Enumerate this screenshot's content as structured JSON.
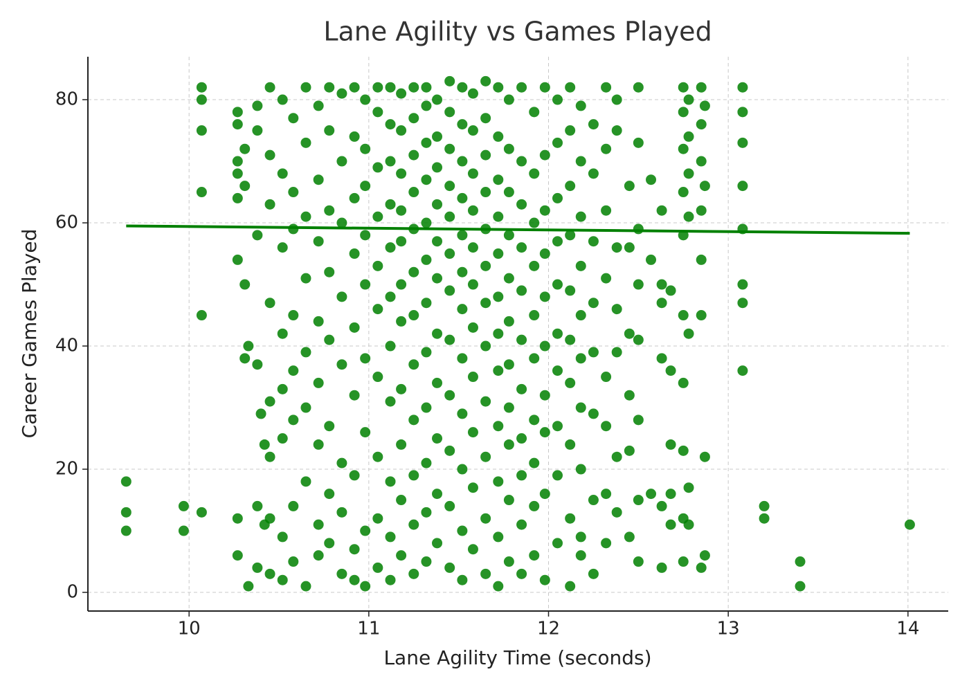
{
  "chart_data": {
    "type": "scatter",
    "title": "Lane Agility vs Games Played",
    "x_label": "Lane Agility Time (seconds)",
    "y_label": "Career Games Played",
    "color": "#008000",
    "grid": true,
    "xlim": [
      9.437,
      14.224
    ],
    "ylim": [
      -3.03,
      86.97
    ],
    "xticks": [
      10,
      11,
      12,
      13,
      14
    ],
    "yticks": [
      0,
      20,
      40,
      60,
      80
    ],
    "trend": {
      "x": [
        9.65,
        14.01
      ],
      "y": [
        59.5,
        58.3
      ]
    },
    "x": [
      9.65,
      9.65,
      9.65,
      9.97,
      9.97,
      10.07,
      10.07,
      10.07,
      10.07,
      10.07,
      10.07,
      10.27,
      10.27,
      10.27,
      10.27,
      10.27,
      10.27,
      10.27,
      10.27,
      10.31,
      10.31,
      10.31,
      10.31,
      10.33,
      10.33,
      10.38,
      10.38,
      10.38,
      10.38,
      10.38,
      10.38,
      10.4,
      10.42,
      10.42,
      10.45,
      10.45,
      10.45,
      10.45,
      10.45,
      10.45,
      10.45,
      10.45,
      10.52,
      10.52,
      10.52,
      10.52,
      10.52,
      10.52,
      10.52,
      10.52,
      10.58,
      10.58,
      10.58,
      10.58,
      10.58,
      10.58,
      10.58,
      10.58,
      10.65,
      10.65,
      10.65,
      10.65,
      10.65,
      10.65,
      10.65,
      10.65,
      10.72,
      10.72,
      10.72,
      10.72,
      10.72,
      10.72,
      10.72,
      10.72,
      10.78,
      10.78,
      10.78,
      10.78,
      10.78,
      10.78,
      10.78,
      10.78,
      10.85,
      10.85,
      10.85,
      10.85,
      10.85,
      10.85,
      10.85,
      10.85,
      10.92,
      10.92,
      10.92,
      10.92,
      10.92,
      10.92,
      10.92,
      10.92,
      10.92,
      10.98,
      10.98,
      10.98,
      10.98,
      10.98,
      10.98,
      10.98,
      10.98,
      10.98,
      11.05,
      11.05,
      11.05,
      11.05,
      11.05,
      11.05,
      11.05,
      11.05,
      11.05,
      11.05,
      11.12,
      11.12,
      11.12,
      11.12,
      11.12,
      11.12,
      11.12,
      11.12,
      11.12,
      11.12,
      11.12,
      11.18,
      11.18,
      11.18,
      11.18,
      11.18,
      11.18,
      11.18,
      11.18,
      11.18,
      11.18,
      11.18,
      11.25,
      11.25,
      11.25,
      11.25,
      11.25,
      11.25,
      11.25,
      11.25,
      11.25,
      11.25,
      11.25,
      11.25,
      11.32,
      11.32,
      11.32,
      11.32,
      11.32,
      11.32,
      11.32,
      11.32,
      11.32,
      11.32,
      11.32,
      11.32,
      11.38,
      11.38,
      11.38,
      11.38,
      11.38,
      11.38,
      11.38,
      11.38,
      11.38,
      11.38,
      11.38,
      11.45,
      11.45,
      11.45,
      11.45,
      11.45,
      11.45,
      11.45,
      11.45,
      11.45,
      11.45,
      11.45,
      11.45,
      11.52,
      11.52,
      11.52,
      11.52,
      11.52,
      11.52,
      11.52,
      11.52,
      11.52,
      11.52,
      11.52,
      11.52,
      11.58,
      11.58,
      11.58,
      11.58,
      11.58,
      11.58,
      11.58,
      11.58,
      11.58,
      11.58,
      11.58,
      11.65,
      11.65,
      11.65,
      11.65,
      11.65,
      11.65,
      11.65,
      11.65,
      11.65,
      11.65,
      11.65,
      11.65,
      11.72,
      11.72,
      11.72,
      11.72,
      11.72,
      11.72,
      11.72,
      11.72,
      11.72,
      11.72,
      11.72,
      11.72,
      11.78,
      11.78,
      11.78,
      11.78,
      11.78,
      11.78,
      11.78,
      11.78,
      11.78,
      11.78,
      11.78,
      11.85,
      11.85,
      11.85,
      11.85,
      11.85,
      11.85,
      11.85,
      11.85,
      11.85,
      11.85,
      11.85,
      11.92,
      11.92,
      11.92,
      11.92,
      11.92,
      11.92,
      11.92,
      11.92,
      11.92,
      11.92,
      11.98,
      11.98,
      11.98,
      11.98,
      11.98,
      11.98,
      11.98,
      11.98,
      11.98,
      11.98,
      12.05,
      12.05,
      12.05,
      12.05,
      12.05,
      12.05,
      12.05,
      12.05,
      12.05,
      12.05,
      12.12,
      12.12,
      12.12,
      12.12,
      12.12,
      12.12,
      12.12,
      12.12,
      12.12,
      12.12,
      12.18,
      12.18,
      12.18,
      12.18,
      12.18,
      12.18,
      12.18,
      12.18,
      12.18,
      12.18,
      12.25,
      12.25,
      12.25,
      12.25,
      12.25,
      12.25,
      12.25,
      12.25,
      12.32,
      12.32,
      12.32,
      12.32,
      12.32,
      12.32,
      12.32,
      12.32,
      12.38,
      12.38,
      12.38,
      12.38,
      12.38,
      12.38,
      12.38,
      12.45,
      12.45,
      12.45,
      12.45,
      12.45,
      12.45,
      12.5,
      12.5,
      12.5,
      12.5,
      12.5,
      12.5,
      12.5,
      12.5,
      12.57,
      12.57,
      12.57,
      12.63,
      12.63,
      12.63,
      12.63,
      12.63,
      12.63,
      12.68,
      12.68,
      12.68,
      12.68,
      12.68,
      12.75,
      12.75,
      12.75,
      12.75,
      12.75,
      12.75,
      12.75,
      12.75,
      12.75,
      12.75,
      12.78,
      12.78,
      12.78,
      12.78,
      12.78,
      12.78,
      12.78,
      12.85,
      12.85,
      12.85,
      12.85,
      12.85,
      12.85,
      12.85,
      12.87,
      12.87,
      12.87,
      12.87,
      13.08,
      13.08,
      13.08,
      13.08,
      13.08,
      13.08,
      13.08,
      13.08,
      13.2,
      13.2,
      13.4,
      13.4,
      14.01
    ],
    "values": [
      18,
      13,
      10,
      14,
      10,
      82,
      80,
      75,
      65,
      45,
      13,
      78,
      76,
      70,
      68,
      64,
      54,
      12,
      6,
      72,
      66,
      50,
      38,
      40,
      1,
      79,
      75,
      58,
      37,
      14,
      4,
      29,
      24,
      11,
      82,
      71,
      63,
      47,
      31,
      22,
      12,
      3,
      80,
      68,
      56,
      42,
      33,
      25,
      9,
      2,
      77,
      65,
      59,
      45,
      36,
      28,
      14,
      5,
      82,
      73,
      61,
      51,
      39,
      30,
      18,
      1,
      79,
      67,
      57,
      44,
      34,
      24,
      11,
      6,
      82,
      75,
      62,
      52,
      41,
      27,
      16,
      8,
      81,
      70,
      60,
      48,
      37,
      21,
      13,
      3,
      82,
      74,
      64,
      55,
      43,
      32,
      19,
      7,
      2,
      80,
      72,
      66,
      58,
      50,
      38,
      26,
      10,
      1,
      82,
      78,
      69,
      61,
      53,
      46,
      35,
      22,
      12,
      4,
      82,
      76,
      70,
      63,
      56,
      48,
      40,
      31,
      18,
      9,
      2,
      81,
      75,
      68,
      62,
      57,
      50,
      44,
      33,
      24,
      15,
      6,
      82,
      77,
      71,
      65,
      59,
      52,
      45,
      37,
      28,
      19,
      11,
      3,
      82,
      79,
      73,
      67,
      60,
      54,
      47,
      39,
      30,
      21,
      13,
      5,
      80,
      74,
      69,
      63,
      57,
      51,
      42,
      34,
      25,
      16,
      8,
      83,
      78,
      72,
      66,
      61,
      55,
      49,
      41,
      32,
      23,
      14,
      4,
      82,
      76,
      70,
      64,
      58,
      52,
      46,
      38,
      29,
      20,
      10,
      2,
      81,
      75,
      68,
      62,
      56,
      50,
      43,
      35,
      26,
      17,
      7,
      83,
      77,
      71,
      65,
      59,
      53,
      47,
      40,
      31,
      22,
      12,
      3,
      82,
      74,
      67,
      61,
      55,
      48,
      42,
      36,
      27,
      18,
      9,
      1,
      80,
      72,
      65,
      58,
      51,
      44,
      37,
      30,
      24,
      15,
      5,
      82,
      70,
      63,
      56,
      49,
      41,
      33,
      25,
      19,
      11,
      3,
      78,
      68,
      60,
      53,
      45,
      38,
      28,
      21,
      14,
      6,
      82,
      71,
      62,
      55,
      48,
      40,
      32,
      26,
      16,
      2,
      80,
      73,
      64,
      57,
      50,
      42,
      36,
      27,
      19,
      8,
      82,
      75,
      66,
      58,
      49,
      41,
      34,
      24,
      12,
      1,
      79,
      70,
      61,
      53,
      45,
      38,
      30,
      20,
      9,
      6,
      76,
      68,
      57,
      47,
      39,
      29,
      15,
      3,
      82,
      72,
      62,
      51,
      35,
      27,
      16,
      8,
      80,
      75,
      56,
      46,
      39,
      22,
      13,
      66,
      56,
      42,
      32,
      23,
      9,
      82,
      73,
      59,
      50,
      41,
      28,
      15,
      5,
      67,
      54,
      16,
      62,
      50,
      47,
      38,
      14,
      4,
      49,
      36,
      24,
      16,
      11,
      82,
      78,
      72,
      65,
      58,
      45,
      34,
      23,
      12,
      5,
      80,
      74,
      68,
      61,
      42,
      17,
      11,
      82,
      76,
      70,
      62,
      54,
      45,
      4,
      79,
      66,
      22,
      6,
      82,
      78,
      73,
      66,
      59,
      50,
      47,
      36,
      14,
      12,
      5,
      1,
      11
    ]
  }
}
